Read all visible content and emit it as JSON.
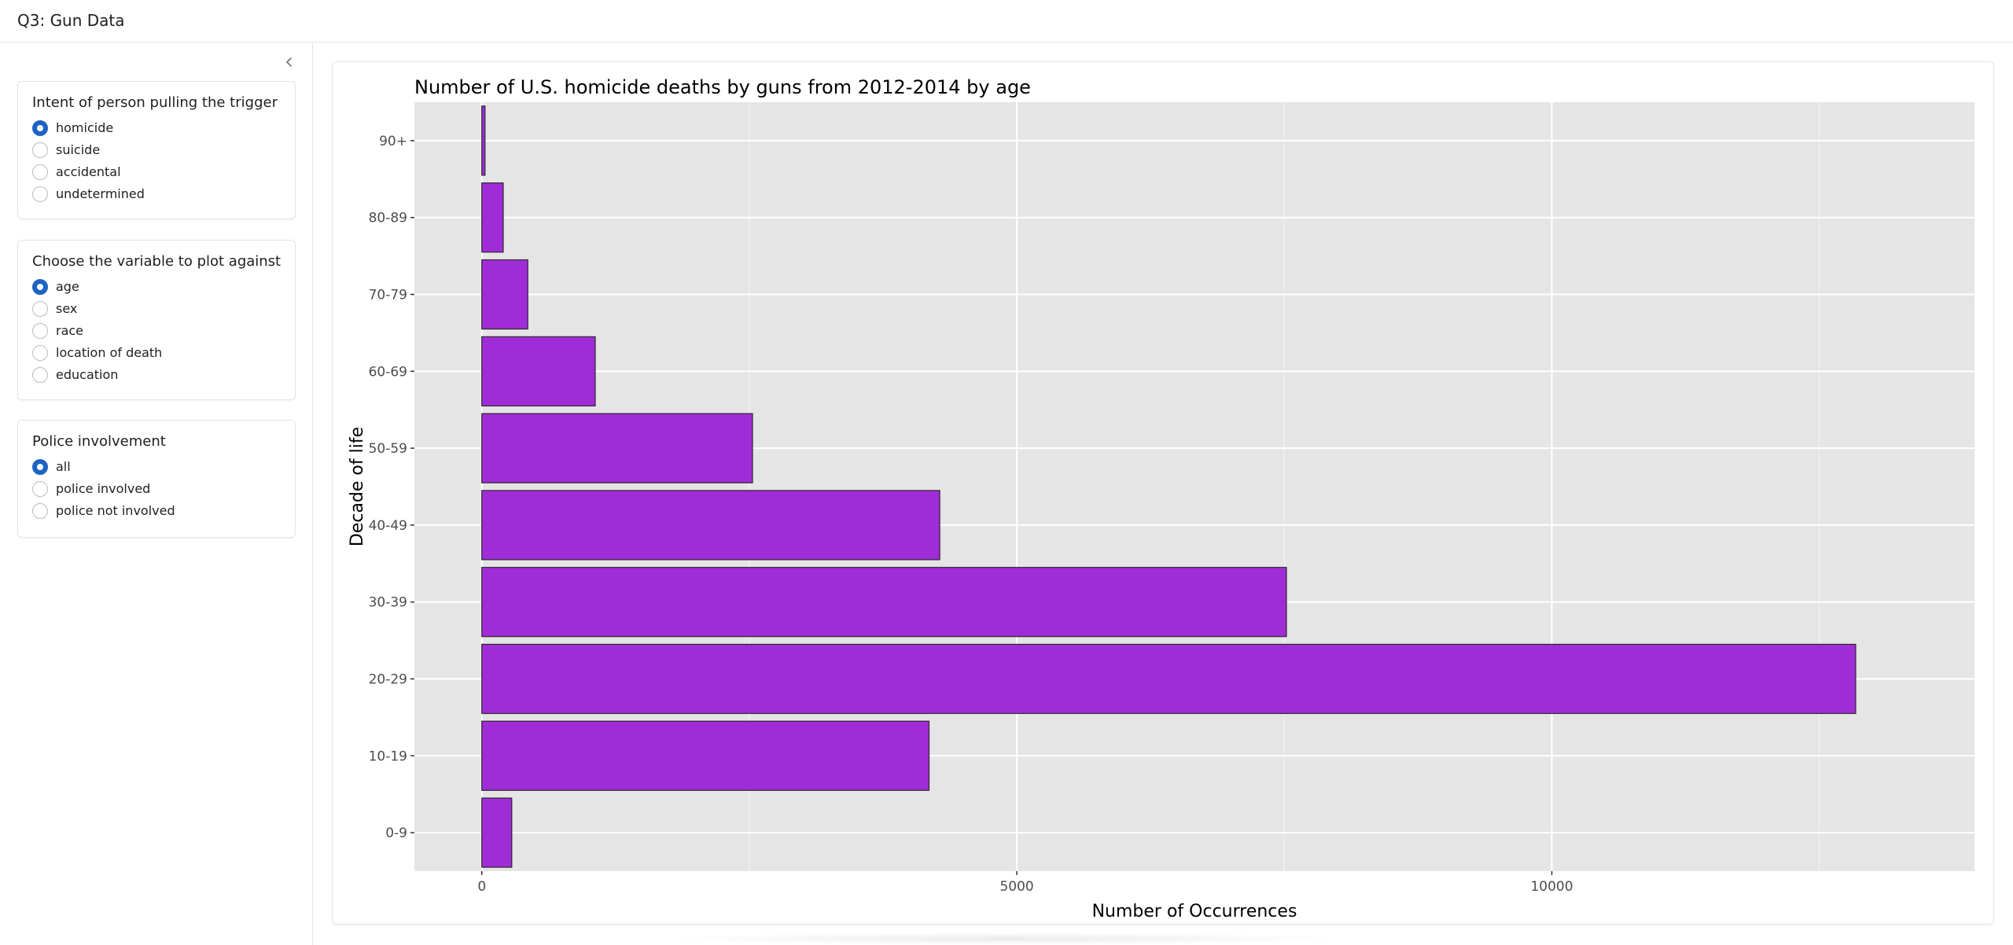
{
  "app": {
    "title": "Q3: Gun Data"
  },
  "sidebar": {
    "collapse_icon": "chevron-left-icon",
    "groups": [
      {
        "title": "Intent of person pulling the trigger",
        "options": [
          "homicide",
          "suicide",
          "accidental",
          "undetermined"
        ],
        "selected": "homicide"
      },
      {
        "title": "Choose the variable to plot against",
        "options": [
          "age",
          "sex",
          "race",
          "location of death",
          "education"
        ],
        "selected": "age"
      },
      {
        "title": "Police involvement",
        "options": [
          "all",
          "police involved",
          "police not involved"
        ],
        "selected": "all"
      }
    ]
  },
  "colors": {
    "accent": "#1e63c2",
    "bar_fill": "#a02cd8",
    "bar_stroke": "#2a2a2a",
    "panel_bg": "#e5e5e5",
    "grid": "#ffffff"
  },
  "chart_data": {
    "type": "bar",
    "orientation": "horizontal",
    "title": "Number of U.S. homicide deaths by guns from 2012-2014 by age",
    "xlabel": "Number of Occurrences",
    "ylabel": "Decade of life",
    "categories": [
      "0-9",
      "10-19",
      "20-29",
      "30-39",
      "40-49",
      "50-59",
      "60-69",
      "70-79",
      "80-89",
      "90+"
    ],
    "values": [
      280,
      4180,
      12840,
      7520,
      4280,
      2530,
      1060,
      430,
      200,
      30
    ],
    "xlim": [
      -630,
      13950
    ],
    "xticks": [
      0,
      5000,
      10000
    ],
    "xtick_labels": [
      "0",
      "5000",
      "10000"
    ],
    "grid": true,
    "legend": "none"
  }
}
